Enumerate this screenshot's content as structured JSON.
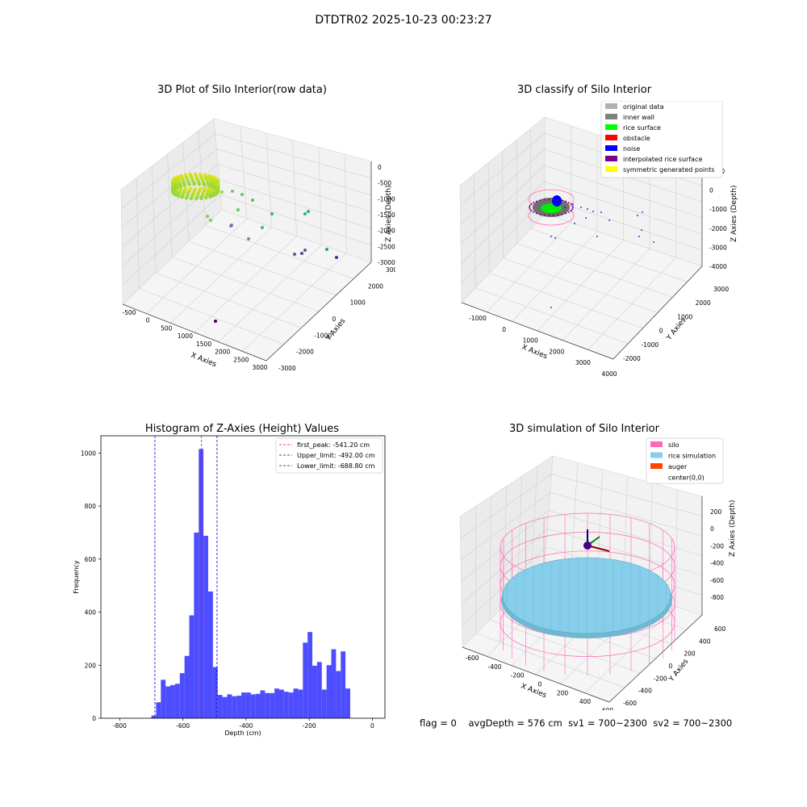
{
  "figure_title": "DTDTR02 2025-10-23 00:23:27",
  "footer": {
    "flag": "flag = 0",
    "avg_depth": "avgDepth = 576 cm",
    "sv1": "sv1 = 700~2300",
    "sv2": "sv2 = 700~2300"
  },
  "chart_data": [
    {
      "type": "scatter",
      "title": "3D Plot of Silo Interior(row data)",
      "xlabel": "X Axies",
      "ylabel": "Y Axies",
      "zlabel": "Z Axies (Depth)",
      "xticks": [
        "-500",
        "0",
        "500",
        "1000",
        "1500",
        "2000",
        "2500",
        "3000"
      ],
      "yticks": [
        "-3000",
        "-2000",
        "-1000",
        "0",
        "1000",
        "2000",
        "3000"
      ],
      "zticks": [
        "0",
        "-500",
        "-1000",
        "-1500",
        "-2000",
        "-2500",
        "-3000"
      ],
      "colormap": "viridis"
    },
    {
      "type": "scatter",
      "title": "3D classify of Silo Interior",
      "xlabel": "X Axies",
      "ylabel": "Y Axies",
      "zlabel": "Z Axies (Depth)",
      "xticks": [
        "-1000",
        "0",
        "1000",
        "2000",
        "3000",
        "4000"
      ],
      "yticks": [
        "-2000",
        "-1000",
        "0",
        "1000",
        "2000",
        "3000"
      ],
      "zticks": [
        "1000",
        "0",
        "-1000",
        "-2000",
        "-3000",
        "-4000"
      ],
      "legend_position": "top-right",
      "legend": [
        {
          "label": "original data",
          "color": "#b0b0b0"
        },
        {
          "label": "inner wall",
          "color": "#808080"
        },
        {
          "label": "rice surface",
          "color": "#00ff00"
        },
        {
          "label": "obstacle",
          "color": "#ff0000"
        },
        {
          "label": "noise",
          "color": "#0000ff"
        },
        {
          "label": "interpolated rice surface",
          "color": "#800080"
        },
        {
          "label": "symmetric generated points",
          "color": "#ffff00"
        }
      ]
    },
    {
      "type": "bar",
      "title": "Histogram of Z-Axies (Height) Values",
      "xlabel": "Depth (cm)",
      "ylabel": "Frequency",
      "xlim": [
        -860,
        40
      ],
      "ylim": [
        0,
        1065
      ],
      "xticks": [
        "-800",
        "-600",
        "-400",
        "-200",
        "0"
      ],
      "yticks": [
        "0",
        "200",
        "400",
        "600",
        "800",
        "1000"
      ],
      "bin_width": 15,
      "bar_color": "#4d4dff",
      "bins": [
        {
          "x0": -700,
          "count": 10
        },
        {
          "x0": -685,
          "count": 60
        },
        {
          "x0": -670,
          "count": 145
        },
        {
          "x0": -655,
          "count": 120
        },
        {
          "x0": -640,
          "count": 125
        },
        {
          "x0": -625,
          "count": 130
        },
        {
          "x0": -610,
          "count": 170
        },
        {
          "x0": -595,
          "count": 235
        },
        {
          "x0": -580,
          "count": 388
        },
        {
          "x0": -565,
          "count": 700
        },
        {
          "x0": -550,
          "count": 1015
        },
        {
          "x0": -535,
          "count": 688
        },
        {
          "x0": -520,
          "count": 478
        },
        {
          "x0": -505,
          "count": 193
        },
        {
          "x0": -490,
          "count": 88
        },
        {
          "x0": -475,
          "count": 80
        },
        {
          "x0": -460,
          "count": 90
        },
        {
          "x0": -445,
          "count": 83
        },
        {
          "x0": -430,
          "count": 85
        },
        {
          "x0": -415,
          "count": 97
        },
        {
          "x0": -400,
          "count": 97
        },
        {
          "x0": -385,
          "count": 90
        },
        {
          "x0": -370,
          "count": 92
        },
        {
          "x0": -355,
          "count": 105
        },
        {
          "x0": -340,
          "count": 95
        },
        {
          "x0": -325,
          "count": 95
        },
        {
          "x0": -310,
          "count": 112
        },
        {
          "x0": -295,
          "count": 108
        },
        {
          "x0": -280,
          "count": 100
        },
        {
          "x0": -265,
          "count": 97
        },
        {
          "x0": -250,
          "count": 112
        },
        {
          "x0": -235,
          "count": 108
        },
        {
          "x0": -220,
          "count": 285
        },
        {
          "x0": -205,
          "count": 325
        },
        {
          "x0": -190,
          "count": 198
        },
        {
          "x0": -175,
          "count": 212
        },
        {
          "x0": -160,
          "count": 108
        },
        {
          "x0": -145,
          "count": 200
        },
        {
          "x0": -130,
          "count": 260
        },
        {
          "x0": -115,
          "count": 178
        },
        {
          "x0": -100,
          "count": 252
        },
        {
          "x0": -85,
          "count": 112
        }
      ],
      "vlines": [
        {
          "label": "first_peak: -541.20 cm",
          "x": -541.2,
          "color": "#ff0000"
        },
        {
          "label": "Upper_limit: -492.00 cm",
          "x": -492.0,
          "color": "#0000cc"
        },
        {
          "label": "Lower_limit: -688.80 cm",
          "x": -688.8,
          "color": "#0000cc"
        }
      ],
      "legend_position": "top-right"
    },
    {
      "type": "scatter",
      "title": "3D simulation of Silo Interior",
      "xlabel": "X Axies",
      "ylabel": "Y Axies",
      "zlabel": "Z Axies (Depth)",
      "xticks": [
        "-600",
        "-400",
        "-200",
        "0",
        "200",
        "400",
        "600"
      ],
      "yticks": [
        "-600",
        "-400",
        "-200",
        "0",
        "200",
        "400",
        "600"
      ],
      "zticks": [
        "200",
        "0",
        "-200",
        "-400",
        "-600",
        "-800"
      ],
      "legend_position": "top-right",
      "legend": [
        {
          "label": "silo",
          "color": "#ff69b4"
        },
        {
          "label": "rice simulation",
          "color": "#87ceeb"
        },
        {
          "label": "auger",
          "color": "#ff4500"
        },
        {
          "label": "center(0,0)",
          "color": ""
        }
      ]
    }
  ]
}
